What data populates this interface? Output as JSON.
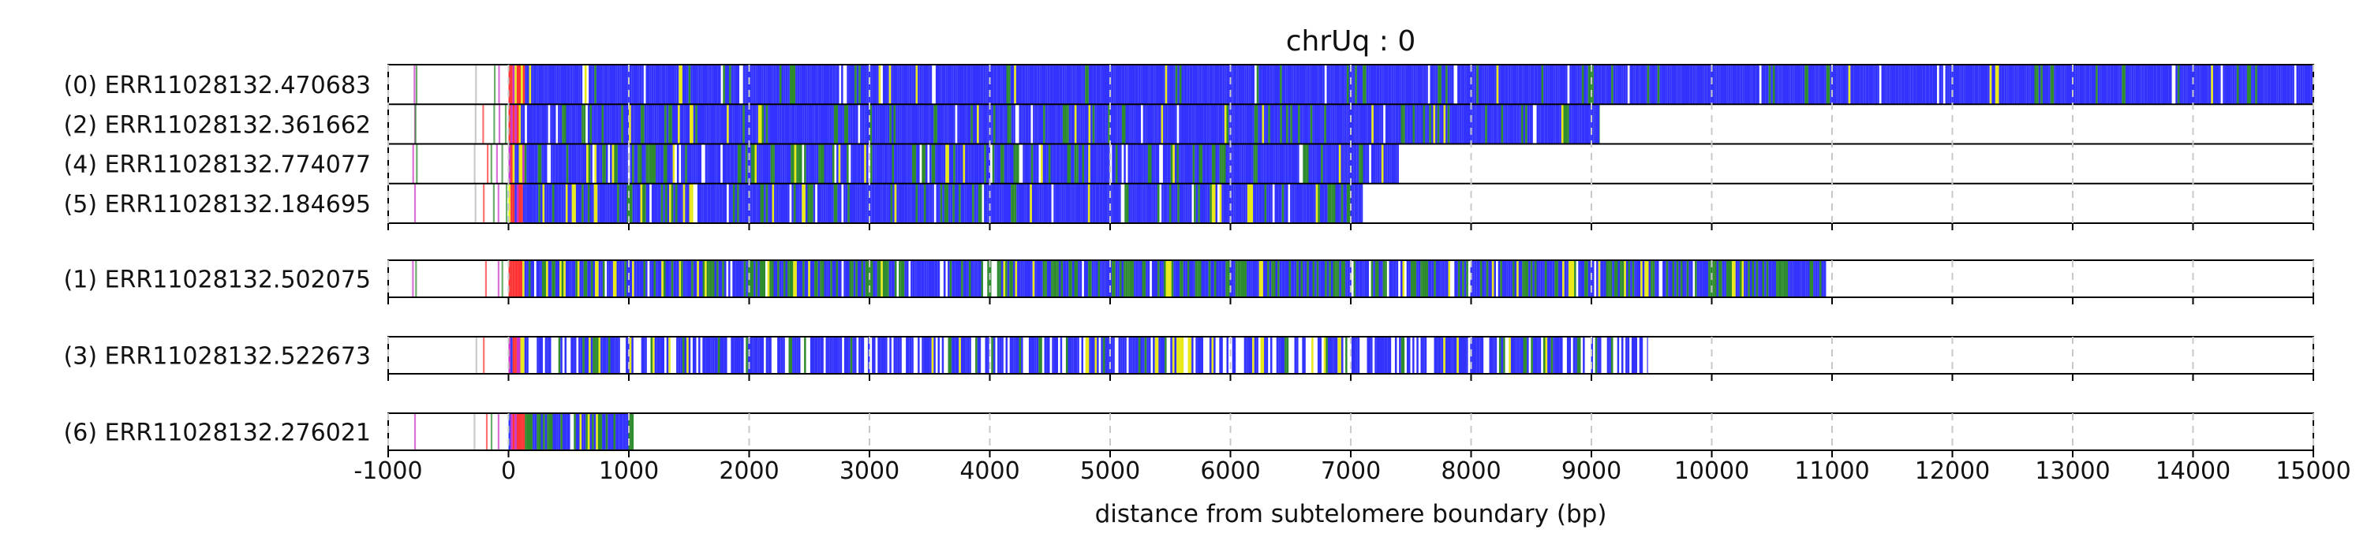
{
  "chart_data": {
    "type": "read-track-plot",
    "title": "chrUq : 0",
    "xlabel": "distance from subtelomere boundary (bp)",
    "ylabel": "",
    "xlim": [
      -1000,
      15000
    ],
    "x_ticks": [
      -1000,
      0,
      1000,
      2000,
      3000,
      4000,
      5000,
      6000,
      7000,
      8000,
      9000,
      10000,
      11000,
      12000,
      13000,
      14000,
      15000
    ],
    "grid": "vertical dashed",
    "colors": {
      "blue": "#3333ff",
      "green": "#2e8b2e",
      "yellow": "#e8e81a",
      "red": "#ff3333",
      "magenta": "#cc33cc",
      "gray": "#b3b3b3",
      "white": "#ffffff"
    },
    "panels": [
      {
        "reads": [
          {
            "label": "(0) ERR11028132.470683",
            "end": 15000,
            "density": 1,
            "green": 0.05,
            "yellow": 0.02
          },
          {
            "label": "(2) ERR11028132.361662",
            "end": 9070,
            "density": 1,
            "green": 0.1,
            "yellow": 0.03
          },
          {
            "label": "(4) ERR11028132.774077",
            "end": 7400,
            "density": 1,
            "green": 0.18,
            "yellow": 0.05
          },
          {
            "label": "(5) ERR11028132.184695",
            "end": 7100,
            "density": 1,
            "green": 0.12,
            "yellow": 0.04
          }
        ]
      },
      {
        "reads": [
          {
            "label": "(1) ERR11028132.502075",
            "end": 10950,
            "density": 1,
            "green": 0.35,
            "yellow": 0.06
          }
        ]
      },
      {
        "reads": [
          {
            "label": "(3) ERR11028132.522673",
            "end": 9470,
            "density": 0.75,
            "green": 0.1,
            "yellow": 0.04
          }
        ]
      },
      {
        "reads": [
          {
            "label": "(6) ERR11028132.276021",
            "end": 1040,
            "density": 1,
            "green": 0.4,
            "yellow": 0.08
          }
        ]
      }
    ]
  }
}
